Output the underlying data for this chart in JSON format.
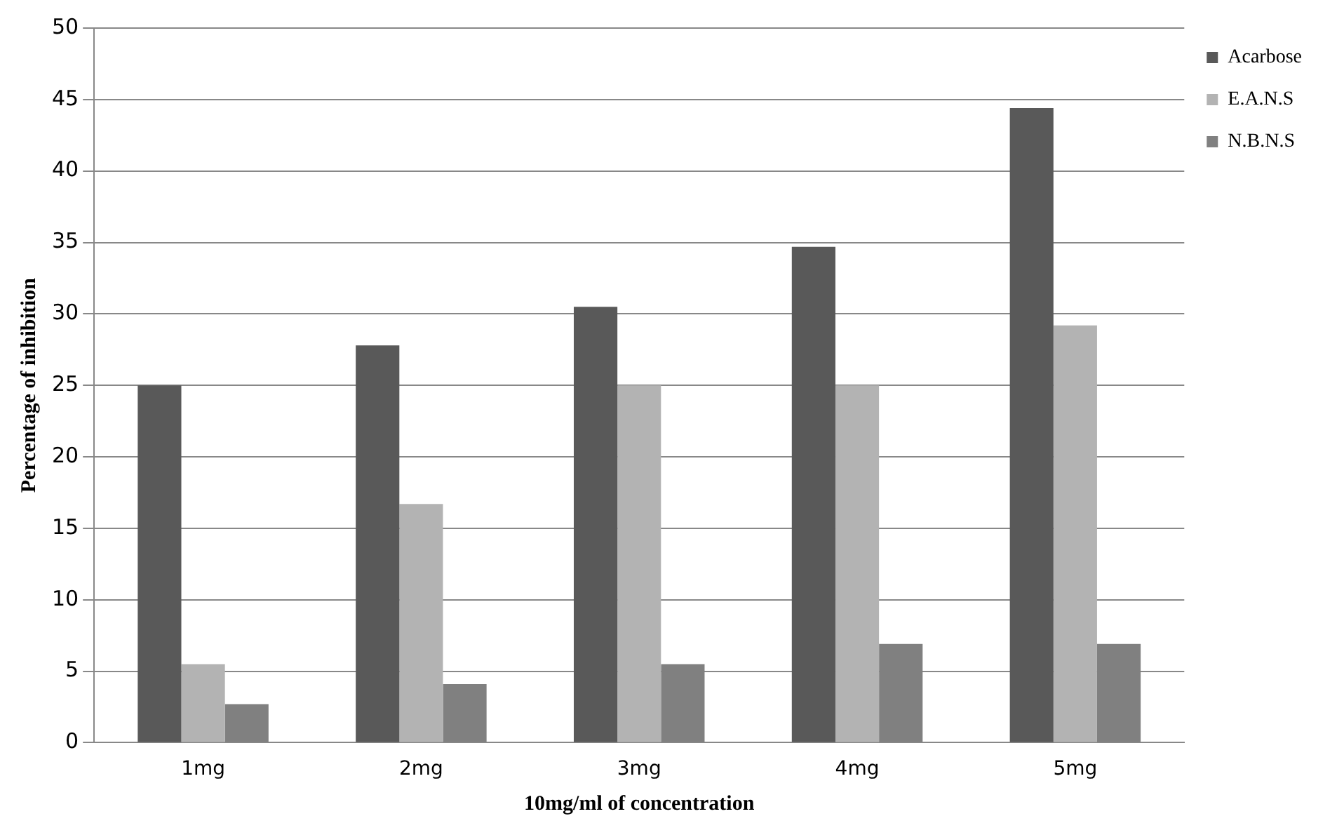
{
  "chart_data": {
    "type": "bar",
    "xlabel": "10mg/ml of concentration",
    "ylabel": "Percentage of inhibition",
    "categories": [
      "1mg",
      "2mg",
      "3mg",
      "4mg",
      "5mg"
    ],
    "series": [
      {
        "name": "Acarbose",
        "color": "#595959",
        "values": [
          25,
          27.8,
          30.5,
          34.7,
          44.4
        ]
      },
      {
        "name": "E.A.N.S",
        "color": "#b3b3b3",
        "values": [
          5.5,
          16.7,
          25,
          25,
          29.2
        ]
      },
      {
        "name": "N.B.N.S",
        "color": "#808080",
        "values": [
          2.7,
          4.1,
          5.5,
          6.9,
          6.9
        ]
      }
    ],
    "ylim": [
      0,
      50
    ],
    "yticks": [
      0,
      5,
      10,
      15,
      20,
      25,
      30,
      35,
      40,
      45,
      50
    ],
    "grid": "y",
    "legend": "top right"
  }
}
